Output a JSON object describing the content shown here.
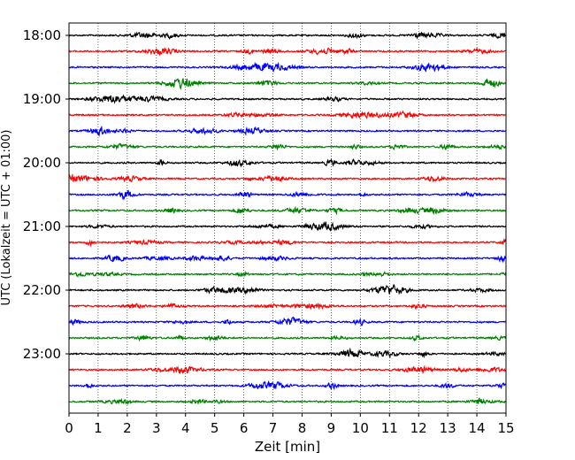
{
  "chart_data": {
    "type": "line",
    "title": "",
    "xlabel": "Zeit  [min]",
    "ylabel": "UTC (Lokalzeit = UTC + 01:00)",
    "xlim": [
      0,
      15
    ],
    "x_ticks": [
      0,
      1,
      2,
      3,
      4,
      5,
      6,
      7,
      8,
      9,
      10,
      11,
      12,
      13,
      14,
      15
    ],
    "y_tick_labels": [
      "18:00",
      "19:00",
      "20:00",
      "21:00",
      "22:00",
      "23:00"
    ],
    "grid": "vertical dotted",
    "trace_interval_min": 15,
    "trace_start": "18:00",
    "trace_count": 24,
    "trace_colors": [
      "#000000",
      "#ff0000",
      "#0000ff",
      "#008000"
    ],
    "series_description": "Seismogram helicorder: one 15-minute noise trace per row, colors cycling black, red, blue, green"
  }
}
